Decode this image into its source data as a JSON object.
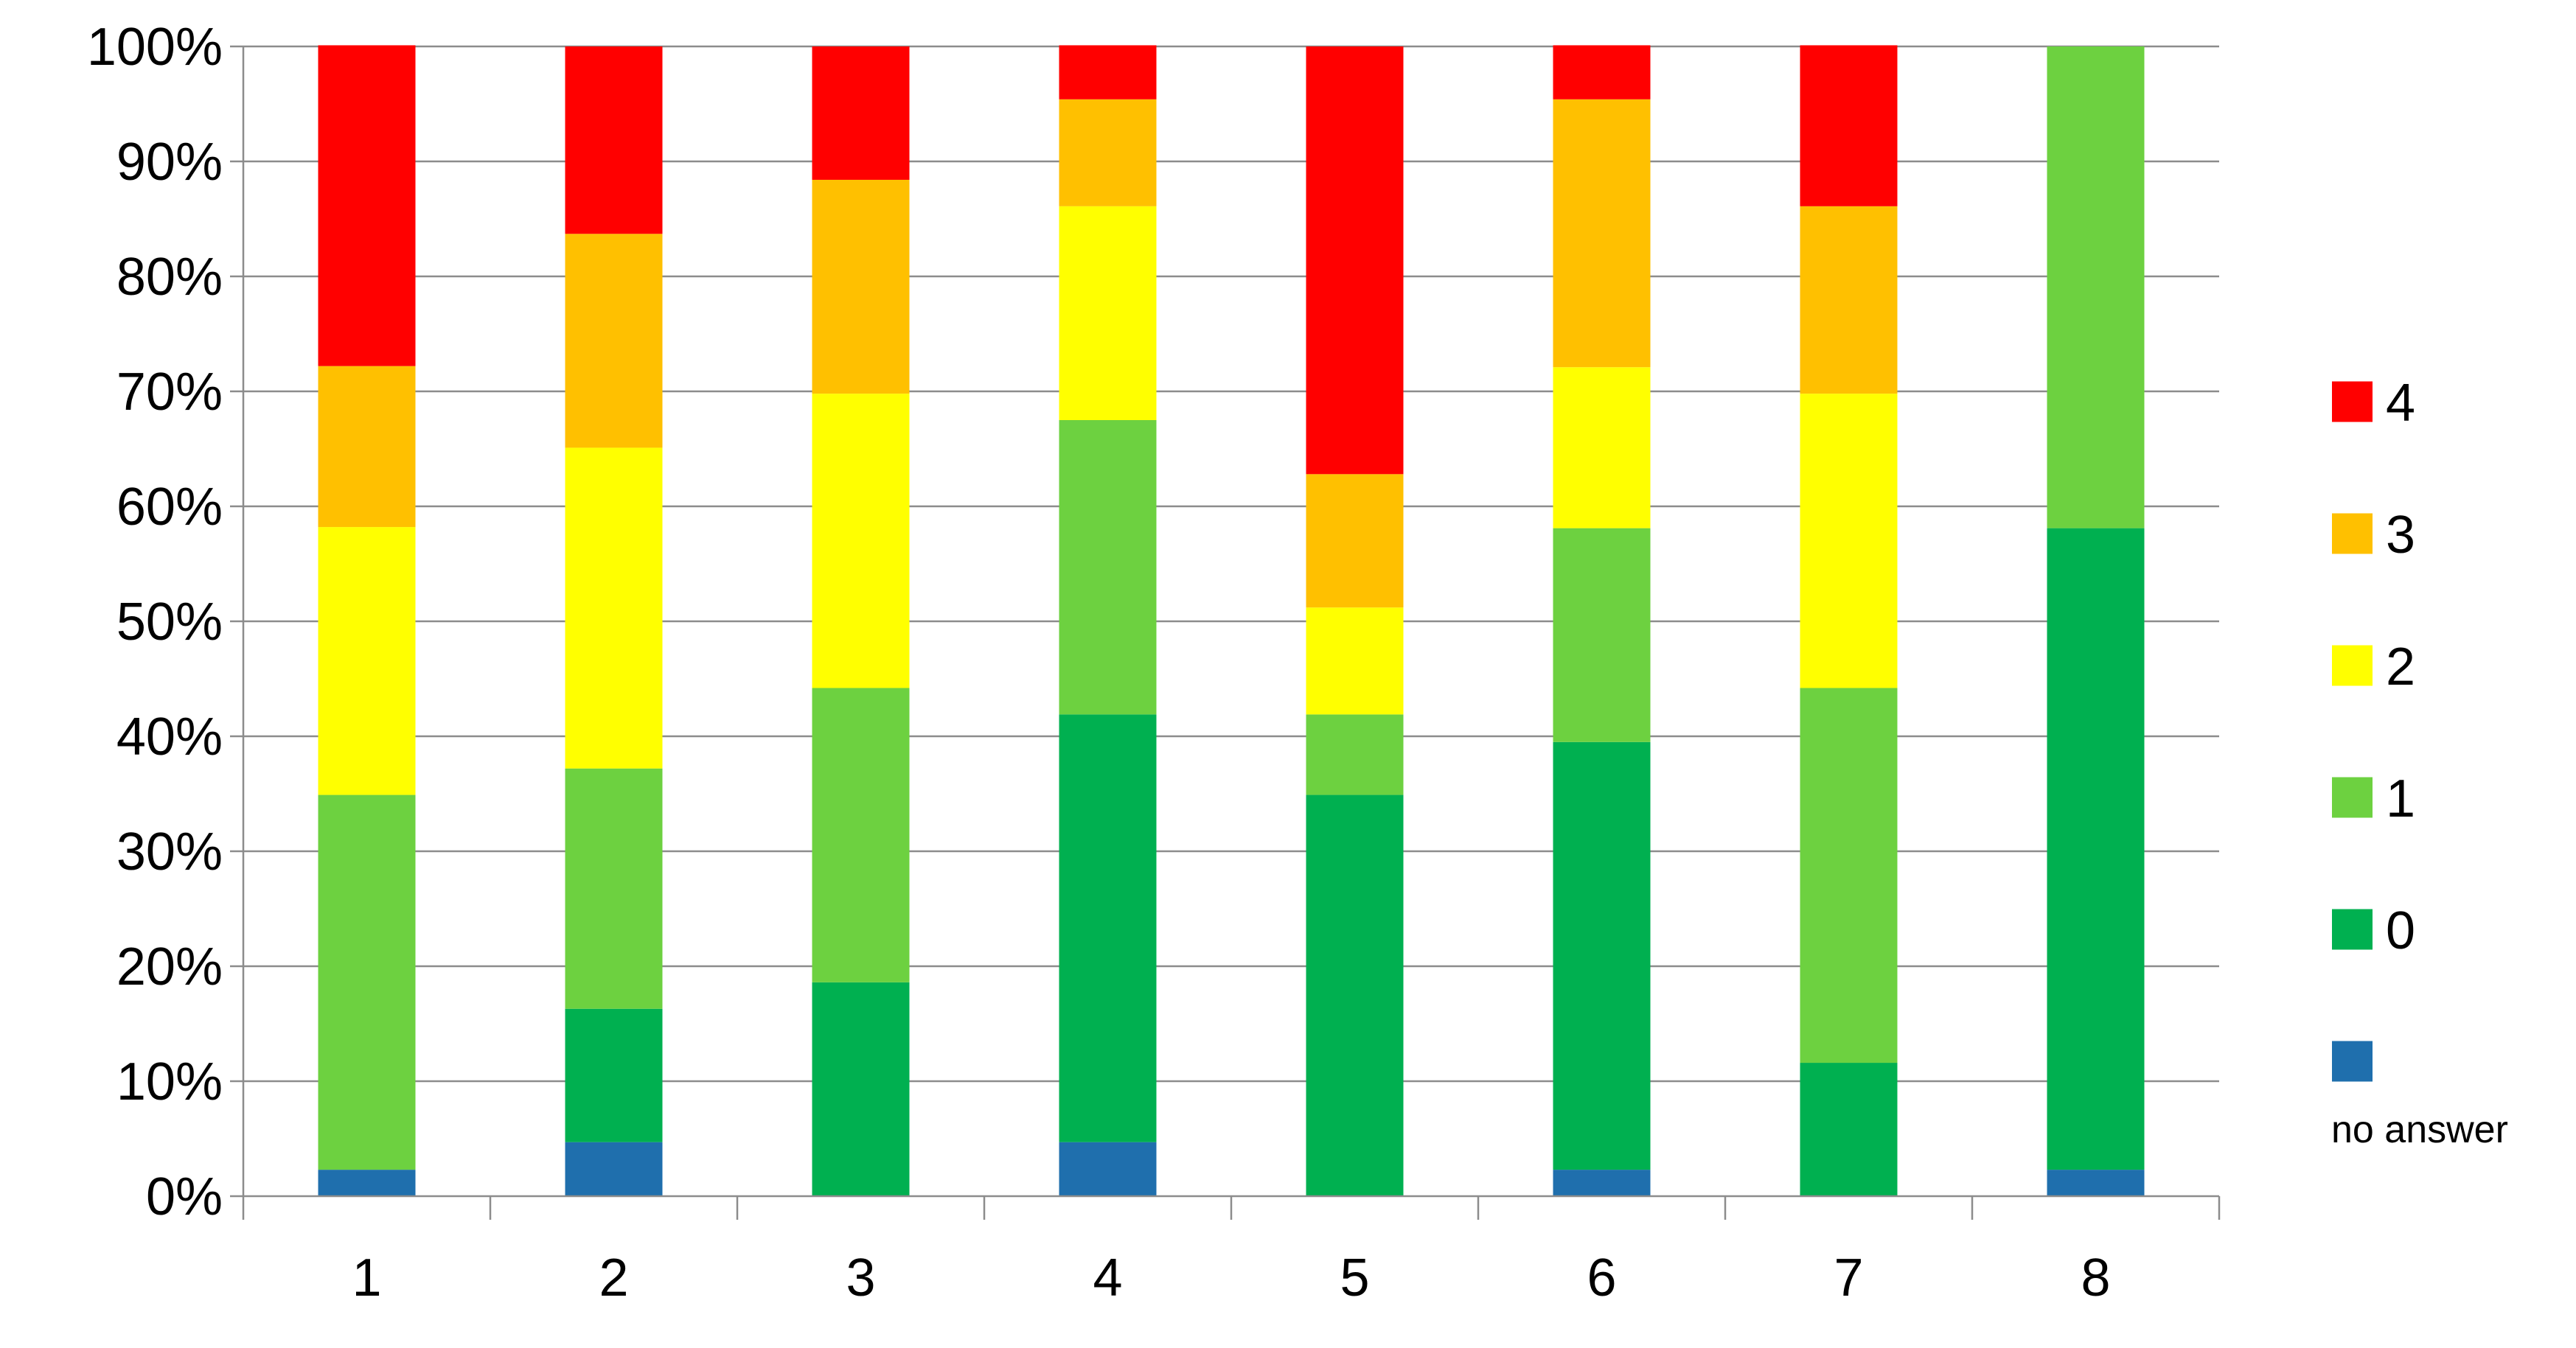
{
  "chart_data": {
    "type": "bar",
    "stacked": true,
    "percent": true,
    "categories": [
      "1",
      "2",
      "3",
      "4",
      "5",
      "6",
      "7",
      "8"
    ],
    "series": [
      {
        "name": "no answer",
        "color": "#1f6fad",
        "values": [
          2.3,
          4.7,
          0,
          4.7,
          0,
          2.3,
          0,
          2.3
        ]
      },
      {
        "name": "0",
        "color": "#00b050",
        "values": [
          0,
          11.6,
          18.6,
          37.2,
          34.9,
          37.2,
          11.6,
          55.8
        ]
      },
      {
        "name": "1",
        "color": "#6dd140",
        "values": [
          32.6,
          20.9,
          25.6,
          25.6,
          7.0,
          18.6,
          32.6,
          41.9
        ]
      },
      {
        "name": "2",
        "color": "#ffff00",
        "values": [
          23.3,
          27.9,
          25.6,
          18.6,
          9.3,
          14.0,
          25.6,
          0
        ]
      },
      {
        "name": "3",
        "color": "#ffc000",
        "values": [
          14.0,
          18.6,
          18.6,
          9.3,
          11.6,
          23.3,
          16.3,
          0
        ]
      },
      {
        "name": "4",
        "color": "#ff0000",
        "values": [
          27.9,
          16.3,
          11.6,
          4.7,
          37.2,
          4.7,
          14.0,
          0
        ]
      }
    ],
    "ylim": [
      0,
      100
    ],
    "yticks": [
      "0%",
      "10%",
      "20%",
      "30%",
      "40%",
      "50%",
      "60%",
      "70%",
      "80%",
      "90%",
      "100%"
    ],
    "grid": true,
    "legend_position": "right",
    "legend": [
      {
        "label": "4",
        "series": "4"
      },
      {
        "label": "3",
        "series": "3"
      },
      {
        "label": "2",
        "series": "2"
      },
      {
        "label": "1",
        "series": "1"
      },
      {
        "label": "0",
        "series": "0"
      },
      {
        "label": "",
        "sublabel": "no answer",
        "series": "no answer"
      }
    ]
  }
}
